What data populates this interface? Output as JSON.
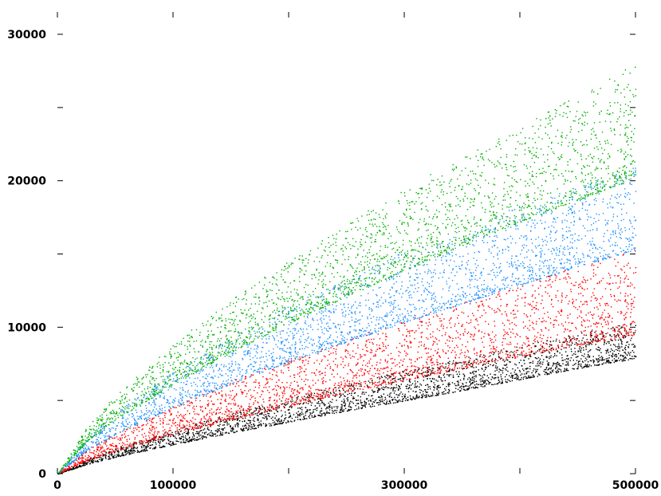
{
  "chart_data": {
    "type": "scatter",
    "title": "",
    "xlabel": "",
    "ylabel": "",
    "xlim": [
      0,
      500000
    ],
    "ylim": [
      0,
      30000
    ],
    "grid": false,
    "legend": "none",
    "x_ticks": [
      0,
      100000,
      200000,
      300000,
      400000,
      500000
    ],
    "x_tick_labels": [
      "0",
      "100000",
      "",
      "300000",
      "",
      "500000"
    ],
    "y_ticks": [
      0,
      5000,
      10000,
      15000,
      20000,
      25000,
      30000
    ],
    "y_tick_labels": [
      "0",
      "",
      "10000",
      "",
      "20000",
      "",
      "30000"
    ],
    "series": [
      {
        "color": "#000000",
        "x": [
          0,
          25000,
          50000,
          100000,
          150000,
          200000,
          250000,
          300000,
          350000,
          400000,
          450000,
          500000
        ],
        "y_lower": [
          0,
          650,
          1150,
          2000,
          2800,
          3550,
          4300,
          5000,
          5700,
          6450,
          7200,
          7900
        ],
        "y_upper": [
          0,
          1000,
          1750,
          3000,
          4150,
          5200,
          6150,
          7050,
          7900,
          8750,
          9600,
          10400
        ]
      },
      {
        "color": "#ff0000",
        "x": [
          0,
          25000,
          50000,
          100000,
          150000,
          200000,
          250000,
          300000,
          350000,
          400000,
          450000,
          500000
        ],
        "y_lower": [
          0,
          900,
          1550,
          2700,
          3700,
          4650,
          5550,
          6400,
          7200,
          8000,
          8800,
          9500
        ],
        "y_upper": [
          0,
          1650,
          2800,
          4700,
          6350,
          7850,
          9200,
          10500,
          11800,
          13000,
          14200,
          15400
        ]
      },
      {
        "color": "#1e90ff",
        "x": [
          0,
          25000,
          50000,
          100000,
          150000,
          200000,
          250000,
          300000,
          350000,
          400000,
          450000,
          500000
        ],
        "y_lower": [
          0,
          1600,
          2700,
          4550,
          6150,
          7650,
          9000,
          10350,
          11600,
          12900,
          14150,
          15300
        ],
        "y_upper": [
          0,
          2500,
          4200,
          7000,
          9400,
          11500,
          13400,
          15200,
          16800,
          18300,
          19700,
          21000
        ]
      },
      {
        "color": "#00b000",
        "x": [
          0,
          25000,
          50000,
          100000,
          150000,
          200000,
          250000,
          300000,
          350000,
          400000,
          450000,
          500000
        ],
        "y_lower": [
          0,
          2200,
          3700,
          6100,
          8300,
          10300,
          12100,
          13900,
          15600,
          17200,
          18700,
          20200
        ],
        "y_upper": [
          0,
          3200,
          5400,
          8900,
          11900,
          14600,
          17100,
          19500,
          21700,
          23800,
          25900,
          28000
        ]
      }
    ]
  }
}
